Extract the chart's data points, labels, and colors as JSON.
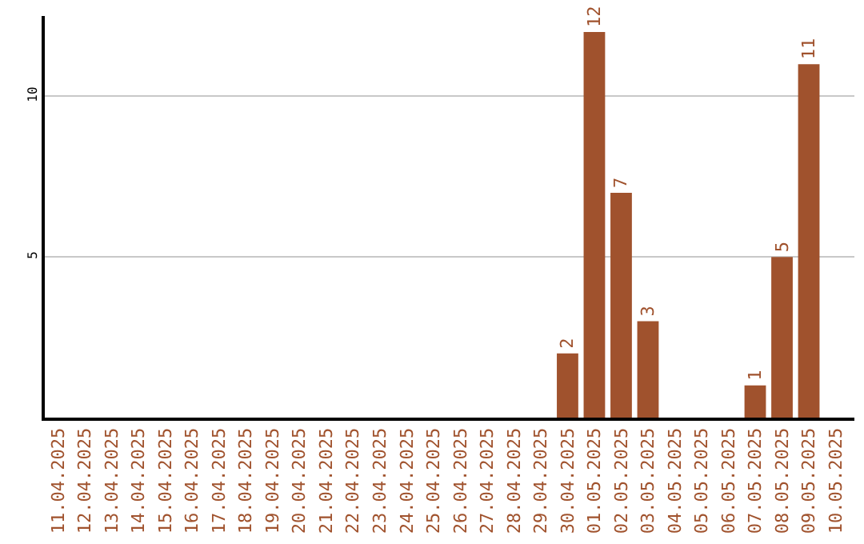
{
  "chart_data": {
    "type": "bar",
    "categories": [
      "11.04.2025",
      "12.04.2025",
      "13.04.2025",
      "14.04.2025",
      "15.04.2025",
      "16.04.2025",
      "17.04.2025",
      "18.04.2025",
      "19.04.2025",
      "20.04.2025",
      "21.04.2025",
      "22.04.2025",
      "23.04.2025",
      "24.04.2025",
      "25.04.2025",
      "26.04.2025",
      "27.04.2025",
      "28.04.2025",
      "29.04.2025",
      "30.04.2025",
      "01.05.2025",
      "02.05.2025",
      "03.05.2025",
      "04.05.2025",
      "05.05.2025",
      "06.05.2025",
      "07.05.2025",
      "08.05.2025",
      "09.05.2025",
      "10.05.2025"
    ],
    "values": [
      0,
      0,
      0,
      0,
      0,
      0,
      0,
      0,
      0,
      0,
      0,
      0,
      0,
      0,
      0,
      0,
      0,
      0,
      0,
      2,
      12,
      7,
      3,
      0,
      0,
      0,
      1,
      5,
      11,
      0
    ],
    "value_labels": [
      null,
      null,
      null,
      null,
      null,
      null,
      null,
      null,
      null,
      null,
      null,
      null,
      null,
      null,
      null,
      null,
      null,
      null,
      null,
      "2",
      "12",
      "7",
      "3",
      null,
      null,
      null,
      "1",
      "5",
      "11",
      null
    ],
    "color": "#a0522d",
    "ylim": [
      0,
      12.5
    ],
    "yticks": [
      5,
      10
    ],
    "grid": "y",
    "legend": false
  }
}
